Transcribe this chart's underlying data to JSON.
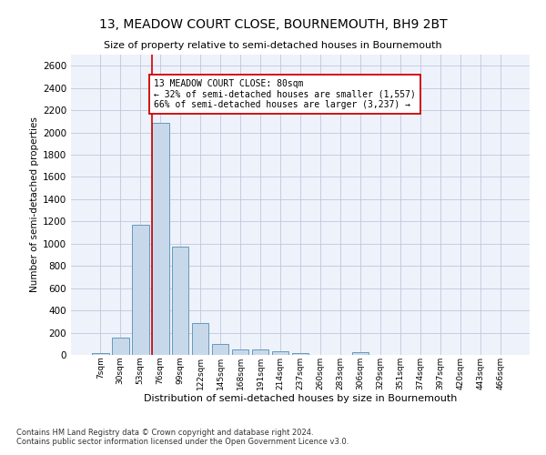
{
  "title": "13, MEADOW COURT CLOSE, BOURNEMOUTH, BH9 2BT",
  "subtitle": "Size of property relative to semi-detached houses in Bournemouth",
  "xlabel": "Distribution of semi-detached houses by size in Bournemouth",
  "ylabel": "Number of semi-detached properties",
  "bar_color": "#c8d8eb",
  "bar_edge_color": "#6699bb",
  "categories": [
    "7sqm",
    "30sqm",
    "53sqm",
    "76sqm",
    "99sqm",
    "122sqm",
    "145sqm",
    "168sqm",
    "191sqm",
    "214sqm",
    "237sqm",
    "260sqm",
    "283sqm",
    "306sqm",
    "329sqm",
    "351sqm",
    "374sqm",
    "397sqm",
    "420sqm",
    "443sqm",
    "466sqm"
  ],
  "values": [
    20,
    155,
    1170,
    2090,
    975,
    290,
    100,
    48,
    48,
    35,
    20,
    0,
    0,
    25,
    0,
    0,
    0,
    0,
    0,
    0,
    0
  ],
  "ylim": [
    0,
    2700
  ],
  "yticks": [
    0,
    200,
    400,
    600,
    800,
    1000,
    1200,
    1400,
    1600,
    1800,
    2000,
    2200,
    2400,
    2600
  ],
  "annotation_text": "13 MEADOW COURT CLOSE: 80sqm\n← 32% of semi-detached houses are smaller (1,557)\n66% of semi-detached houses are larger (3,237) →",
  "annotation_box_color": "#ffffff",
  "annotation_box_edge": "#cc0000",
  "property_line_color": "#cc0000",
  "footer1": "Contains HM Land Registry data © Crown copyright and database right 2024.",
  "footer2": "Contains public sector information licensed under the Open Government Licence v3.0.",
  "bg_color": "#eef2fb",
  "grid_color": "#c0c8dd"
}
